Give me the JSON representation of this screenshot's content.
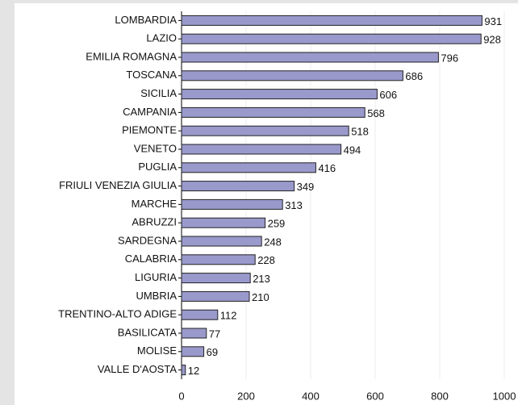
{
  "chart_data": {
    "type": "bar",
    "orientation": "horizontal",
    "categories": [
      "LOMBARDIA",
      "LAZIO",
      "EMILIA ROMAGNA",
      "TOSCANA",
      "SICILIA",
      "CAMPANIA",
      "PIEMONTE",
      "VENETO",
      "PUGLIA",
      "FRIULI VENEZIA GIULIA",
      "MARCHE",
      "ABRUZZI",
      "SARDEGNA",
      "CALABRIA",
      "LIGURIA",
      "UMBRIA",
      "TRENTINO-ALTO ADIGE",
      "BASILICATA",
      "MOLISE",
      "VALLE D'AOSTA"
    ],
    "values": [
      931,
      928,
      796,
      686,
      606,
      568,
      518,
      494,
      416,
      349,
      313,
      259,
      248,
      228,
      213,
      210,
      112,
      77,
      69,
      12
    ],
    "color": "#9999cc",
    "xlim": [
      0,
      1000
    ],
    "xticks": [
      0,
      200,
      400,
      600,
      800,
      1000
    ],
    "grid": true
  }
}
